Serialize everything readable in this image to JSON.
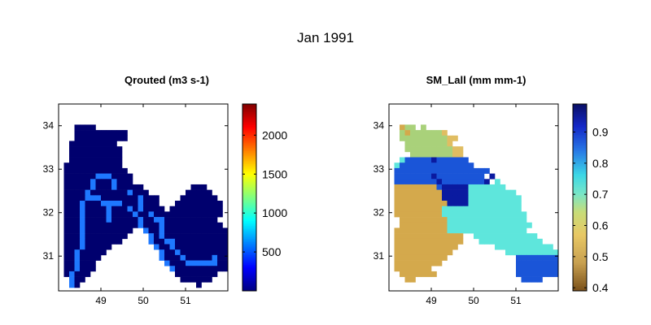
{
  "figure_title": "Jan 1991",
  "chart_data": [
    {
      "type": "heatmap",
      "title": "Qrouted (m3 s-1)",
      "xlim": [
        48.0,
        52.0
      ],
      "ylim": [
        30.2,
        34.5
      ],
      "x_ticks": [
        49,
        50,
        51
      ],
      "x_tick_labels": [
        "49",
        "50",
        "51"
      ],
      "y_ticks": [
        31,
        32,
        33,
        34
      ],
      "y_tick_labels": [
        "31",
        "32",
        "33",
        "34"
      ],
      "colorbar": {
        "scheme": "jet",
        "range": [
          0,
          2400
        ],
        "ticks": [
          500,
          1000,
          1500,
          2000
        ],
        "tick_labels": [
          "500",
          "1000",
          "1500",
          "2000"
        ]
      },
      "grid": {
        "lon0": 48.0,
        "lat0": 30.2,
        "cell": 0.125,
        "nx": 32,
        "ny": 34
      },
      "rows_top_to_bottom": [
        "..............................",
        "...####.........................",
        "...##########...................",
        "...##########...................",
        "..#########......................",
        "..##########.....................",
        "..##########......................",
        "..##########......................",
        ".###########.....................",
        ".############.....................",
        ".######AAA####.....................",
        ".#####A###A###.....................",
        ".#####A###A#####.........###......",
        ".####A#######A###.......#####.....",
        ".####AAA#######A###....#######......",
        ".###A###AAAA###A###...#########.....",
        ".###A####A###A#A####.##########.....",
        ".###A####A####A##A#############.....",
        ".###A####A#####A##AA##########......",
        ".###A##########A###A###########......",
        ".###A#########..A##A#############....",
        ".###A########....A#A#############....",
        ".###A#######.....A##AA############...",
        ".###A#####........A##A############...",
        ".##A#####..........A##A##########....",
        ".##A####...........A###A#####A####...",
        ".##A###.............A###AAAAAA#####...",
        ".##A###..............A##############..",
        ".#A###................########..#####.",
        "..A##..................######...######",
        "..A#......................#.....#####."
      ]
    },
    {
      "type": "heatmap",
      "title": "SM_Lall (mm mm-1)",
      "xlim": [
        48.0,
        52.0
      ],
      "ylim": [
        30.2,
        34.5
      ],
      "x_ticks": [
        49,
        50,
        51
      ],
      "x_tick_labels": [
        "49",
        "50",
        "51"
      ],
      "y_ticks": [
        31,
        32,
        33,
        34
      ],
      "y_tick_labels": [
        "31",
        "32",
        "33",
        "34"
      ],
      "colorbar": {
        "scheme": "brown-yellow-cyan-blue",
        "range": [
          0.39,
          0.99
        ],
        "ticks": [
          0.4,
          0.5,
          0.6,
          0.7,
          0.8,
          0.9
        ],
        "tick_labels": [
          "0.4",
          "0.5",
          "0.6",
          "0.7",
          "0.8",
          "0.9"
        ]
      },
      "grid": {
        "lon0": 48.0,
        "lat0": 30.2,
        "cell": 0.125,
        "nx": 32,
        "ny": 34
      },
      "rows_top_to_bottom": [
        "................................",
        "..344.4......................",
        "..434444445......................",
        "..44444444455.....................",
        "...444444445.....................",
        "...44444444455.....................",
        "....4444444455.....................",
        "..7888889888888.....................",
        ".788888888888888.....................",
        ".888888888888888888.................",
        ".88888889888888888.9................",
        ".888888889888888889.7................",
        ".333333338999997777777..............",
        ".33333333399999777777777............",
        ".333333333999997777777777..........",
        ".333333333399997777777777..........",
        ".333333333777777777777777.........",
        ".3333333337777777777777777........",
        "..333333333777777777777777.......",
        "..3333333337777777777777777......",
        ".3333333333777777777777777........",
        ".3333333333333..777777777777......",
        ".3333333333333...777777777777.....",
        ".333333333333.......77777777777...",
        ".33333333333..........7777777777..",
        ".3333333333.............888888888.",
        ".333333333..............888888888.",
        ".3333333................8888888888",
        "..3333333...............88888888..",
        "...33....................8888..."
      ]
    }
  ]
}
